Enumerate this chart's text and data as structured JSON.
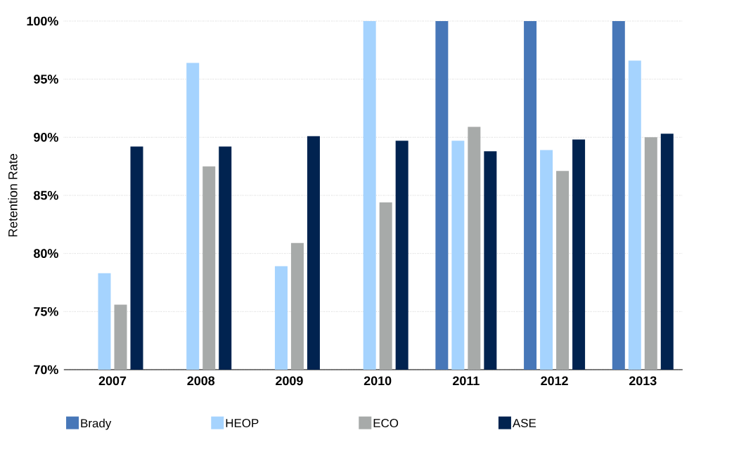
{
  "chart_data": {
    "type": "bar",
    "ylabel": "Retention Rate",
    "categories": [
      "2007",
      "2008",
      "2009",
      "2010",
      "2011",
      "2012",
      "2013"
    ],
    "series": [
      {
        "name": "Brady",
        "color": "#4777b8",
        "values": [
          null,
          null,
          null,
          null,
          100,
          100,
          100
        ]
      },
      {
        "name": "HEOP",
        "color": "#a5d3fe",
        "values": [
          78.3,
          96.4,
          78.9,
          100,
          89.7,
          88.9,
          96.6
        ]
      },
      {
        "name": "ECO",
        "color": "#a7aaa9",
        "values": [
          75.6,
          87.5,
          80.9,
          84.4,
          90.9,
          87.1,
          90.0
        ]
      },
      {
        "name": "ASE",
        "color": "#012350",
        "values": [
          89.2,
          89.2,
          90.1,
          89.7,
          88.8,
          89.8,
          90.3
        ]
      }
    ],
    "ylim": [
      70,
      100
    ],
    "yticks": [
      {
        "value": 70,
        "label": "70%"
      },
      {
        "value": 75,
        "label": "75%"
      },
      {
        "value": 80,
        "label": "80%"
      },
      {
        "value": 85,
        "label": "85%"
      },
      {
        "value": 90,
        "label": "90%"
      },
      {
        "value": 95,
        "label": "95%"
      },
      {
        "value": 100,
        "label": "100%"
      }
    ],
    "grid": "y",
    "legend": "bottom"
  }
}
